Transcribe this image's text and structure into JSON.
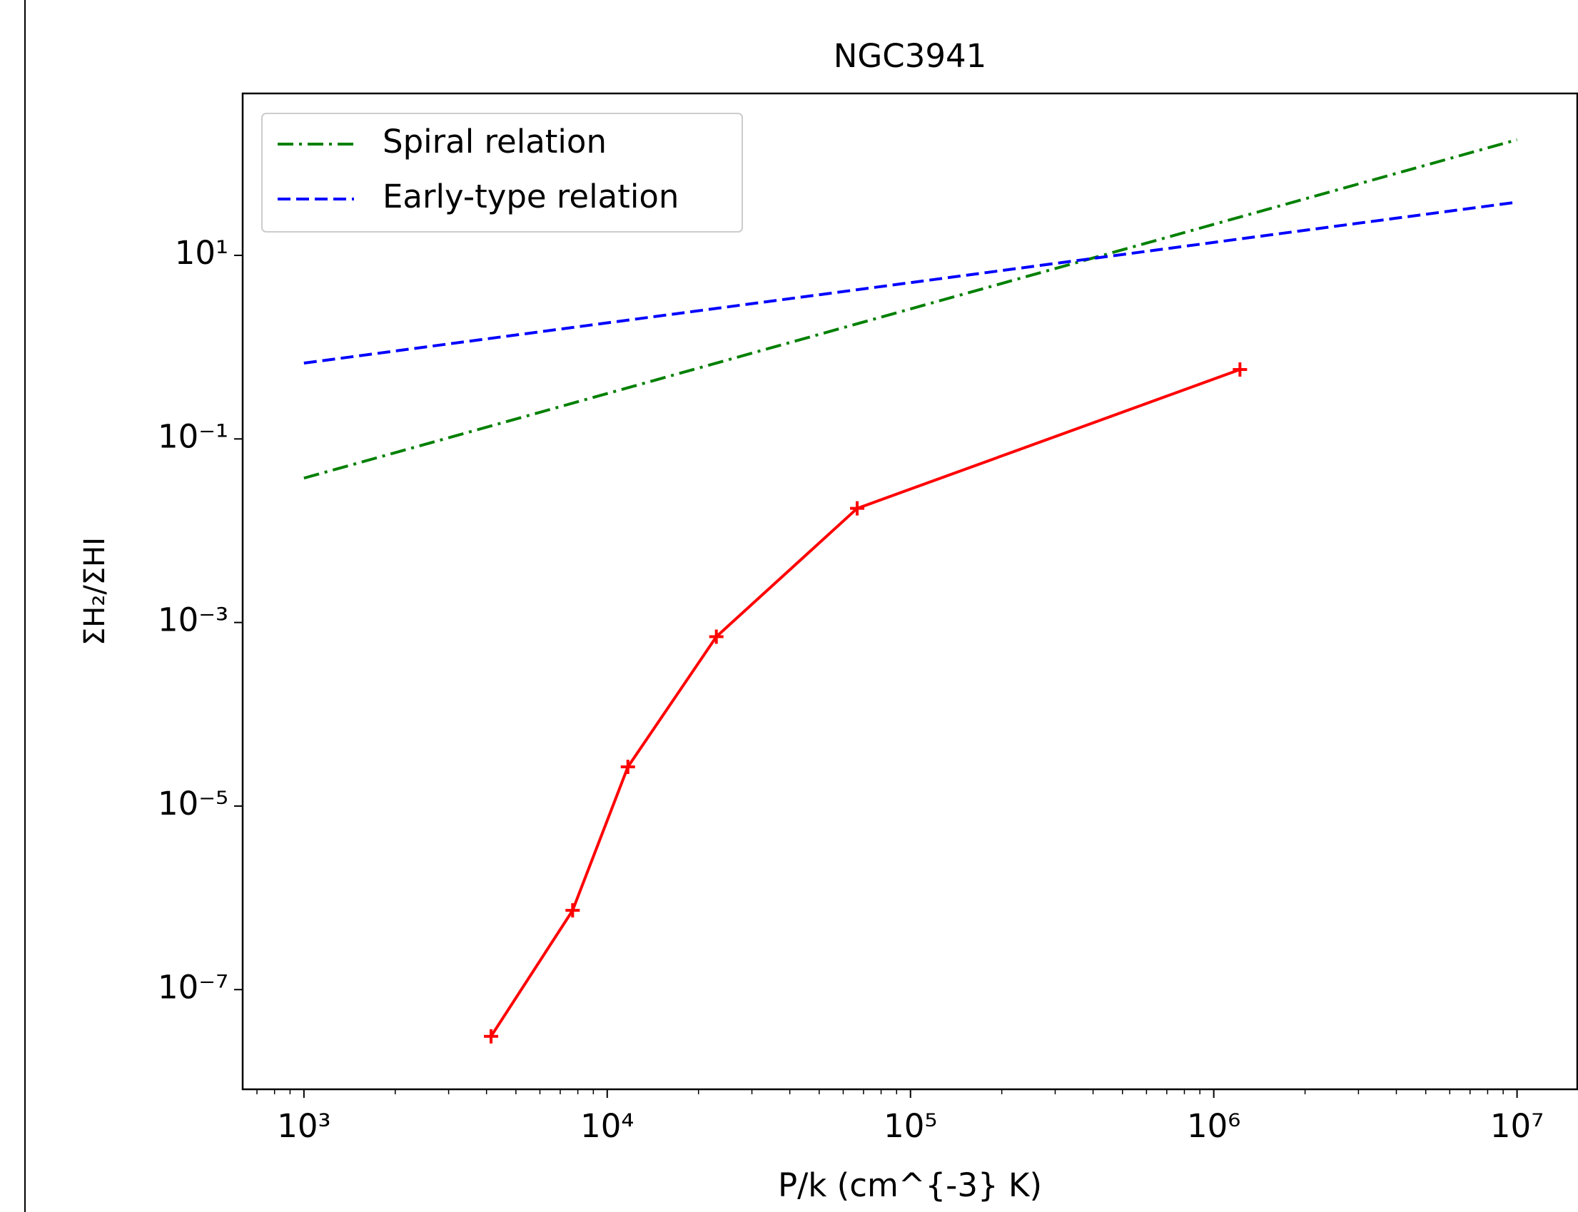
{
  "chart_data": {
    "type": "line",
    "title": "NGC3941",
    "xlabel": "P/k (cm^{-3} K)",
    "ylabel": "ΣH₂/ΣHI",
    "xscale": "log",
    "yscale": "log",
    "xlim": [
      628,
      15800000
    ],
    "ylim": [
      8.2e-09,
      581
    ],
    "xticks": [
      {
        "value": 1000,
        "label": "10³"
      },
      {
        "value": 10000,
        "label": "10⁴"
      },
      {
        "value": 100000,
        "label": "10⁵"
      },
      {
        "value": 1000000,
        "label": "10⁶"
      },
      {
        "value": 10000000,
        "label": "10⁷"
      }
    ],
    "xminorticks": [
      700,
      800,
      900,
      2000,
      3000,
      4000,
      5000,
      6000,
      7000,
      8000,
      9000,
      20000,
      30000,
      40000,
      50000,
      60000,
      70000,
      80000,
      90000,
      200000,
      300000,
      400000,
      500000,
      600000,
      700000,
      800000,
      900000,
      2000000,
      3000000,
      4000000,
      5000000,
      6000000,
      7000000,
      8000000,
      9000000
    ],
    "yticks": [
      {
        "value": 10,
        "label": "10¹"
      },
      {
        "value": 0.1,
        "label": "10⁻¹"
      },
      {
        "value": 0.001,
        "label": "10⁻³"
      },
      {
        "value": 1e-05,
        "label": "10⁻⁵"
      },
      {
        "value": 1e-07,
        "label": "10⁻⁷"
      }
    ],
    "legend": "upper left",
    "series": [
      {
        "color": "#ff0000",
        "style": "solid",
        "marker": "+",
        "x": [
          4140,
          7690,
          11700,
          22900,
          66700,
          1220000
        ],
        "values": [
          3.1e-08,
          7.3e-07,
          2.67e-05,
          0.0007,
          0.0175,
          0.57
        ]
      },
      {
        "name": "Spiral relation",
        "color": "#008000",
        "style": "dashdot",
        "x": [
          1000,
          10000000
        ],
        "values": [
          0.0374,
          182
        ]
      },
      {
        "name": "Early-type relation",
        "color": "#0000ff",
        "style": "dashed",
        "x": [
          1000,
          10000000
        ],
        "values": [
          0.67,
          38
        ]
      }
    ]
  }
}
